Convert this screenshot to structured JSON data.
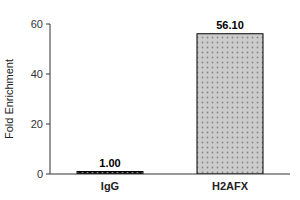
{
  "chart_data": {
    "type": "bar",
    "categories": [
      "IgG",
      "H2AFX"
    ],
    "values": [
      1.0,
      56.1
    ],
    "value_labels": [
      "1.00",
      "56.10"
    ],
    "colors": [
      "#111111",
      "#cccccc"
    ],
    "ylabel": "Fold Enrichment",
    "ylim": [
      0,
      60
    ],
    "yticks": [
      0,
      20,
      40,
      60
    ],
    "grid": false,
    "data_labels": true
  }
}
